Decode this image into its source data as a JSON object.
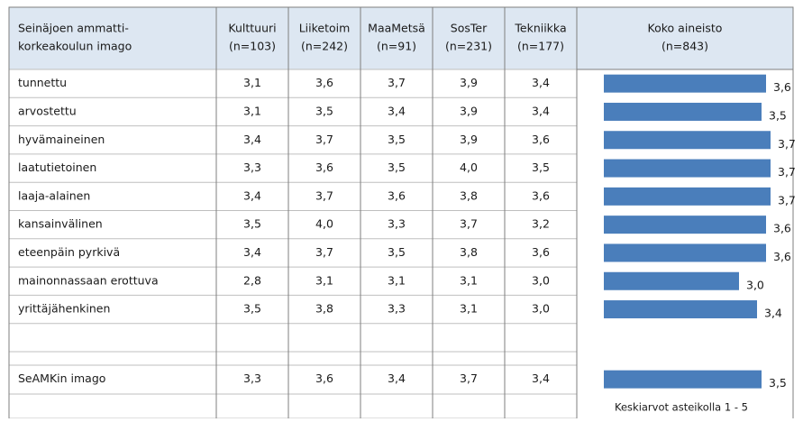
{
  "chart_data": {
    "type": "bar",
    "header_title": [
      "Seinäjoen ammatti-",
      "korkeakoulun imago"
    ],
    "columns": [
      [
        "Kulttuuri",
        "(n=103)"
      ],
      [
        "Liiketoim",
        "(n=242)"
      ],
      [
        "MaaMetsä",
        "(n=91)"
      ],
      [
        "SosTer",
        "(n=231)"
      ],
      [
        "Tekniikka",
        "(n=177)"
      ],
      [
        "Koko aineisto",
        "(n=843)"
      ]
    ],
    "categories": [
      "tunnettu",
      "arvostettu",
      "hyvämaineinen",
      "laatutietoinen",
      "laaja-alainen",
      "kansainvälinen",
      "eteenpäin pyrkivä",
      "mainonnassaan erottuva",
      "yrittäjähenkinen",
      "SeAMKin imago"
    ],
    "table": [
      [
        "3,1",
        "3,6",
        "3,7",
        "3,9",
        "3,4"
      ],
      [
        "3,1",
        "3,5",
        "3,4",
        "3,9",
        "3,4"
      ],
      [
        "3,4",
        "3,7",
        "3,5",
        "3,9",
        "3,6"
      ],
      [
        "3,3",
        "3,6",
        "3,5",
        "4,0",
        "3,5"
      ],
      [
        "3,4",
        "3,7",
        "3,6",
        "3,8",
        "3,6"
      ],
      [
        "3,5",
        "4,0",
        "3,3",
        "3,7",
        "3,2"
      ],
      [
        "3,4",
        "3,7",
        "3,5",
        "3,8",
        "3,6"
      ],
      [
        "2,8",
        "3,1",
        "3,1",
        "3,1",
        "3,0"
      ],
      [
        "3,5",
        "3,8",
        "3,3",
        "3,1",
        "3,0"
      ],
      [
        "3,3",
        "3,6",
        "3,4",
        "3,7",
        "3,4"
      ]
    ],
    "values": [
      3.6,
      3.5,
      3.7,
      3.7,
      3.7,
      3.6,
      3.6,
      3.0,
      3.4,
      3.5
    ],
    "value_labels": [
      "3,6",
      "3,5",
      "3,7",
      "3,7",
      "3,7",
      "3,6",
      "3,6",
      "3,0",
      "3,4",
      "3,5"
    ],
    "xlim": [
      0,
      5
    ],
    "color": "#4a7ebb",
    "note": "Keskiarvot asteikolla 1 - 5"
  }
}
